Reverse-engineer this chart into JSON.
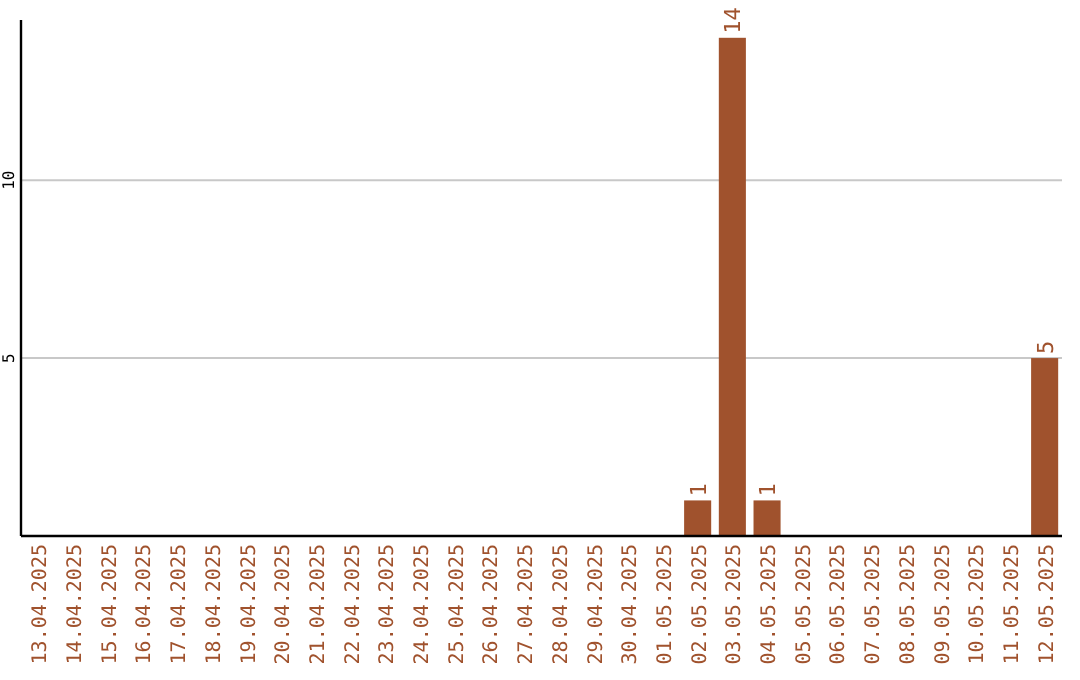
{
  "chart_data": {
    "type": "bar",
    "categories": [
      "13.04.2025",
      "14.04.2025",
      "15.04.2025",
      "16.04.2025",
      "17.04.2025",
      "18.04.2025",
      "19.04.2025",
      "20.04.2025",
      "21.04.2025",
      "22.04.2025",
      "23.04.2025",
      "24.04.2025",
      "25.04.2025",
      "26.04.2025",
      "27.04.2025",
      "28.04.2025",
      "29.04.2025",
      "30.04.2025",
      "01.05.2025",
      "02.05.2025",
      "03.05.2025",
      "04.05.2025",
      "05.05.2025",
      "06.05.2025",
      "07.05.2025",
      "08.05.2025",
      "09.05.2025",
      "10.05.2025",
      "11.05.2025",
      "12.05.2025"
    ],
    "values": [
      0,
      0,
      0,
      0,
      0,
      0,
      0,
      0,
      0,
      0,
      0,
      0,
      0,
      0,
      0,
      0,
      0,
      0,
      0,
      1,
      14,
      1,
      0,
      0,
      0,
      0,
      0,
      0,
      0,
      5
    ],
    "value_labels": [
      null,
      null,
      null,
      null,
      null,
      null,
      null,
      null,
      null,
      null,
      null,
      null,
      null,
      null,
      null,
      null,
      null,
      null,
      null,
      "1",
      "14",
      "1",
      null,
      null,
      null,
      null,
      null,
      null,
      null,
      "5"
    ],
    "color": "#a0522d",
    "ylim": [
      0,
      14.5
    ],
    "yticks": [
      5,
      10
    ],
    "grid": "y"
  }
}
